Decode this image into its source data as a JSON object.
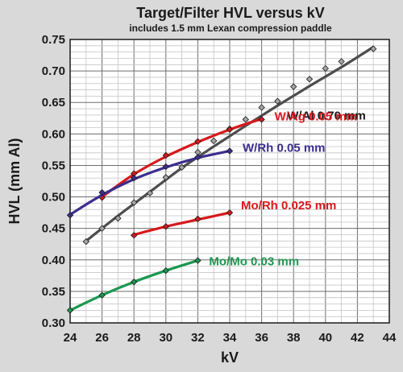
{
  "chart_data": {
    "type": "line",
    "title": "Target/Filter HVL versus kV",
    "subtitle": "includes 1.5 mm Lexan compression paddle",
    "xlabel": "kV",
    "ylabel": "HVL (mm Al)",
    "xlim": [
      24,
      44
    ],
    "ylim": [
      0.3,
      0.75
    ],
    "x_ticks": [
      "24",
      "26",
      "28",
      "30",
      "32",
      "34",
      "36",
      "38",
      "40",
      "42",
      "44"
    ],
    "y_ticks": [
      "0.30",
      "0.35",
      "0.40",
      "0.45",
      "0.50",
      "0.55",
      "0.60",
      "0.65",
      "0.70",
      "0.75"
    ],
    "grid": true,
    "legend": "inline labels",
    "series": [
      {
        "name": "W/Al 0.70 mm",
        "color": "#4d4d4d",
        "marker_color": "#a6a6a6",
        "points": [
          [
            25,
            0.429
          ],
          [
            26,
            0.45
          ],
          [
            27,
            0.466
          ],
          [
            28,
            0.491
          ],
          [
            29,
            0.506
          ],
          [
            30,
            0.531
          ],
          [
            31,
            0.547
          ],
          [
            32,
            0.571
          ],
          [
            33,
            0.589
          ],
          [
            34,
            0.608
          ],
          [
            35,
            0.623
          ],
          [
            36,
            0.642
          ],
          [
            37,
            0.652
          ],
          [
            38,
            0.675
          ],
          [
            39,
            0.687
          ],
          [
            40,
            0.704
          ],
          [
            41,
            0.715
          ],
          [
            43,
            0.735
          ]
        ],
        "fit": [
          [
            25,
            0.43
          ],
          [
            27,
            0.47
          ],
          [
            29,
            0.508
          ],
          [
            31,
            0.546
          ],
          [
            33,
            0.58
          ],
          [
            35,
            0.613
          ],
          [
            37,
            0.645
          ],
          [
            39,
            0.676
          ],
          [
            41,
            0.706
          ],
          [
            43,
            0.738
          ]
        ]
      },
      {
        "name": "W/Ag 0.05 mm",
        "color": "#d7191c",
        "marker_color": "#d7191c",
        "points": [
          [
            26,
            0.499
          ],
          [
            28,
            0.537
          ],
          [
            30,
            0.566
          ],
          [
            32,
            0.588
          ],
          [
            34,
            0.607
          ],
          [
            36,
            0.623
          ]
        ],
        "fit": [
          [
            26,
            0.5
          ],
          [
            28,
            0.536
          ],
          [
            30,
            0.564
          ],
          [
            32,
            0.587
          ],
          [
            34,
            0.607
          ],
          [
            36,
            0.624
          ]
        ]
      },
      {
        "name": "W/Rh 0.05 mm",
        "color": "#3b2e8f",
        "marker_color": "#3b2e8f",
        "points": [
          [
            24,
            0.471
          ],
          [
            26,
            0.507
          ],
          [
            28,
            0.53
          ],
          [
            30,
            0.548
          ],
          [
            32,
            0.563
          ],
          [
            34,
            0.573
          ]
        ],
        "fit": [
          [
            24,
            0.472
          ],
          [
            26,
            0.503
          ],
          [
            28,
            0.528
          ],
          [
            30,
            0.547
          ],
          [
            32,
            0.562
          ],
          [
            34,
            0.573
          ]
        ]
      },
      {
        "name": "Mo/Rh 0.025 mm",
        "color": "#d7191c",
        "marker_color": "#d7191c",
        "points": [
          [
            28,
            0.439
          ],
          [
            30,
            0.453
          ],
          [
            32,
            0.465
          ],
          [
            34,
            0.475
          ]
        ],
        "fit": [
          [
            28,
            0.44
          ],
          [
            30,
            0.453
          ],
          [
            32,
            0.464
          ],
          [
            34,
            0.475
          ]
        ]
      },
      {
        "name": "Mo/Mo 0.03 mm",
        "color": "#1a9850",
        "marker_color": "#1a9850",
        "points": [
          [
            24,
            0.32
          ],
          [
            26,
            0.344
          ],
          [
            28,
            0.365
          ],
          [
            30,
            0.383
          ],
          [
            32,
            0.399
          ]
        ],
        "fit": [
          [
            24,
            0.32
          ],
          [
            26,
            0.344
          ],
          [
            28,
            0.365
          ],
          [
            30,
            0.383
          ],
          [
            32,
            0.399
          ]
        ]
      }
    ]
  }
}
